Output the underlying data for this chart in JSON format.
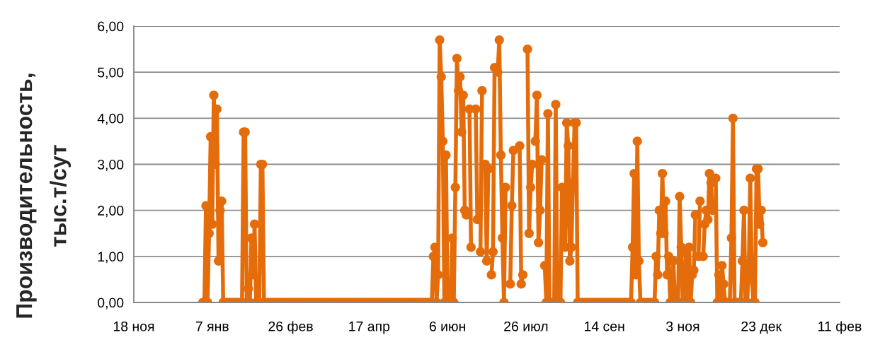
{
  "chart_data": {
    "type": "line",
    "ylabel": "Производительность,\nтыс.т/сут",
    "categories": [
      "18 ноя",
      null,
      null,
      null,
      null,
      null,
      null,
      null,
      null,
      null,
      null,
      null,
      null,
      null,
      null,
      null,
      null,
      null,
      null,
      null,
      null,
      null,
      null,
      null,
      null,
      null,
      null,
      null,
      null,
      null,
      null,
      null,
      null,
      null,
      null,
      null,
      null,
      null,
      null,
      null,
      null,
      null,
      null,
      null,
      null,
      null,
      null,
      null,
      null,
      null,
      "7 янв",
      null,
      null,
      null,
      null,
      null,
      null,
      null,
      null,
      null,
      null,
      null,
      null,
      null,
      null,
      null,
      null,
      null,
      null,
      null,
      null,
      null,
      null,
      null,
      null,
      null,
      null,
      null,
      null,
      null,
      null,
      null,
      null,
      null,
      null,
      null,
      null,
      null,
      null,
      null,
      null,
      null,
      null,
      null,
      null,
      null,
      null,
      null,
      null,
      null,
      "26 фев",
      null,
      null,
      null,
      null,
      null,
      null,
      null,
      null,
      null,
      null,
      null,
      null,
      null,
      null,
      null,
      null,
      null,
      null,
      null,
      null,
      null,
      null,
      null,
      null,
      null,
      null,
      null,
      null,
      null,
      null,
      null,
      null,
      null,
      null,
      null,
      null,
      null,
      null,
      null,
      null,
      null,
      null,
      null,
      null,
      null,
      null,
      null,
      null,
      null,
      "17 апр",
      null,
      null,
      null,
      null,
      null,
      null,
      null,
      null,
      null,
      null,
      null,
      null,
      null,
      null,
      null,
      null,
      null,
      null,
      null,
      null,
      null,
      null,
      null,
      null,
      null,
      null,
      null,
      null,
      null,
      null,
      null,
      null,
      null,
      null,
      null,
      null,
      null,
      null,
      null,
      null,
      null,
      null,
      null,
      null,
      null,
      null,
      null,
      null,
      null,
      "6 июн",
      null,
      null,
      null,
      null,
      null,
      null,
      null,
      null,
      null,
      null,
      null,
      null,
      null,
      null,
      null,
      null,
      null,
      null,
      null,
      null,
      null,
      null,
      null,
      null,
      null,
      null,
      null,
      null,
      null,
      null,
      null,
      null,
      null,
      null,
      null,
      null,
      null,
      null,
      null,
      null,
      null,
      null,
      null,
      null,
      null,
      null,
      null,
      null,
      null,
      "26 июл",
      null,
      null,
      null,
      null,
      null,
      null,
      null,
      null,
      null,
      null,
      null,
      null,
      null,
      null,
      null,
      null,
      null,
      null,
      null,
      null,
      null,
      null,
      null,
      null,
      null,
      null,
      null,
      null,
      null,
      null,
      null,
      null,
      null,
      null,
      null,
      null,
      null,
      null,
      null,
      null,
      null,
      null,
      null,
      null,
      null,
      null,
      null,
      null,
      null,
      "14 сен",
      null,
      null,
      null,
      null,
      null,
      null,
      null,
      null,
      null,
      null,
      null,
      null,
      null,
      null,
      null,
      null,
      null,
      null,
      null,
      null,
      null,
      null,
      null,
      null,
      null,
      null,
      null,
      null,
      null,
      null,
      null,
      null,
      null,
      null,
      null,
      null,
      null,
      null,
      null,
      null,
      null,
      null,
      null,
      null,
      null,
      null,
      null,
      null,
      null,
      "3 ноя",
      null,
      null,
      null,
      null,
      null,
      null,
      null,
      null,
      null,
      null,
      null,
      null,
      null,
      null,
      null,
      null,
      null,
      null,
      null,
      null,
      null,
      null,
      null,
      null,
      null,
      null,
      null,
      null,
      null,
      null,
      null,
      null,
      null,
      null,
      null,
      null,
      null,
      null,
      null,
      null,
      null,
      null,
      null,
      null,
      null,
      null,
      null,
      null,
      null,
      "23 дек",
      null,
      null,
      null,
      null,
      null,
      null,
      null,
      null,
      null,
      null,
      null,
      null,
      null,
      null,
      null,
      null,
      null,
      null,
      null,
      null,
      null,
      null,
      null,
      null,
      null,
      null,
      null,
      null,
      null,
      null,
      null,
      null,
      null,
      null,
      null,
      null,
      null,
      null,
      null,
      null,
      null,
      null,
      null,
      null,
      null,
      null,
      null,
      null,
      null,
      "11 фев"
    ],
    "values": [
      null,
      null,
      null,
      null,
      null,
      null,
      null,
      null,
      null,
      null,
      null,
      null,
      null,
      null,
      null,
      null,
      null,
      null,
      null,
      null,
      null,
      null,
      null,
      null,
      null,
      null,
      null,
      null,
      null,
      null,
      null,
      null,
      null,
      null,
      null,
      null,
      null,
      null,
      null,
      null,
      null,
      null,
      null,
      null,
      0,
      0,
      2.1,
      0,
      1.5,
      3.6,
      1.7,
      4.5,
      3.0,
      4.2,
      0.9,
      2.0,
      2.2,
      0,
      0,
      0,
      0,
      0,
      0,
      0,
      0,
      0,
      0,
      0,
      0,
      0,
      3.7,
      3.7,
      0,
      0.3,
      0,
      1.4,
      0.6,
      1.7,
      0,
      0,
      0,
      3.0,
      3.0,
      0,
      0,
      0,
      0,
      0,
      0,
      0,
      0,
      0,
      0,
      0,
      0,
      0,
      0,
      0,
      0,
      0,
      0,
      0,
      0,
      0,
      0,
      0,
      0,
      0,
      0,
      0,
      0,
      0,
      0,
      0,
      0,
      0,
      0,
      0,
      0,
      0,
      0,
      0,
      0,
      0,
      0,
      0,
      0,
      0,
      0,
      0,
      0,
      0,
      0,
      0,
      0,
      0,
      0,
      0,
      0,
      0,
      0,
      0,
      0,
      0,
      0,
      0,
      0,
      0,
      0,
      0,
      0,
      0,
      0,
      0,
      0,
      0,
      0,
      0,
      0,
      0,
      0,
      0,
      0,
      0,
      0,
      0,
      0,
      0,
      0,
      0,
      0,
      0,
      0,
      0,
      0,
      0,
      0,
      0,
      0,
      0,
      0,
      0,
      0,
      0,
      0,
      0,
      0,
      0,
      0,
      0,
      0,
      1.0,
      1.2,
      0,
      0.6,
      5.7,
      4.9,
      3.5,
      0,
      3.2,
      0,
      0,
      0,
      1.4,
      0,
      2.5,
      5.3,
      4.6,
      4.9,
      3.7,
      4.5,
      2.0,
      1.9,
      null,
      4.2,
      1.2,
      null,
      null,
      4.2,
      1.8,
      null,
      1.1,
      4.6,
      null,
      3.0,
      0.9,
      2.9,
      null,
      0.6,
      1.1,
      5.1,
      null,
      5.0,
      5.7,
      3.2,
      1.4,
      0,
      2.5,
      null,
      null,
      0.4,
      2.1,
      3.3,
      null,
      null,
      null,
      3.4,
      0.4,
      0.6,
      null,
      null,
      5.5,
      1.5,
      2.5,
      3.0,
      null,
      3.5,
      4.5,
      1.3,
      2.0,
      3.1,
      null,
      0.8,
      0,
      4.1,
      0,
      0,
      0,
      0,
      4.3,
      0,
      0,
      0,
      2.5,
      null,
      1.2,
      3.9,
      3.4,
      0.9,
      1.2,
      2.6,
      3.9,
      3.9,
      0,
      0,
      0,
      0,
      0,
      0,
      0,
      0,
      0,
      0,
      0,
      0,
      0,
      0,
      0,
      0,
      0,
      0,
      0,
      0,
      0,
      0,
      0,
      0,
      0,
      0,
      0,
      0,
      0,
      0,
      0,
      0,
      0,
      0,
      0,
      1.2,
      2.8,
      0.6,
      3.5,
      0.9,
      0,
      0,
      0,
      0,
      0,
      0,
      0,
      0,
      0,
      0,
      1.0,
      0.6,
      2.0,
      1.5,
      2.8,
      1.5,
      2.2,
      0.6,
      1.0,
      0,
      0,
      0.9,
      0,
      0,
      0,
      2.3,
      1.2,
      0,
      0,
      1.1,
      0,
      1.2,
      0,
      0.6,
      0.7,
      1.9,
      null,
      1.0,
      2.2,
      null,
      1.0,
      1.7,
      2.0,
      1.8,
      2.8,
      2.6,
      2.0,
      null,
      2.7,
      0,
      0.6,
      0,
      0.8,
      0.4,
      0,
      0,
      0,
      0,
      1.4,
      4.0,
      0,
      0,
      0,
      0,
      0,
      0.9,
      2.0,
      0,
      0,
      0.6,
      2.7,
      0.6,
      0,
      0,
      2.9,
      2.9,
      1.7,
      2.0,
      1.3,
      null,
      null,
      null,
      null,
      null,
      null,
      null,
      null,
      null,
      null,
      null,
      null,
      null,
      null,
      null,
      null,
      null,
      null,
      null,
      null,
      null,
      null,
      null,
      null,
      null,
      null,
      null,
      null,
      null,
      null,
      null,
      null,
      null,
      null,
      null,
      null,
      null,
      null,
      null,
      null,
      null,
      null,
      null,
      null,
      null,
      null,
      null,
      null,
      null
    ],
    "color": "#e46c0a",
    "ylim": [
      0,
      6
    ],
    "yticks": [
      {
        "value": 0,
        "label": "0,00"
      },
      {
        "value": 1,
        "label": "1,00"
      },
      {
        "value": 2,
        "label": "2,00"
      },
      {
        "value": 3,
        "label": "3,00"
      },
      {
        "value": 4,
        "label": "4,00"
      },
      {
        "value": 5,
        "label": "5,00"
      },
      {
        "value": 6,
        "label": "6,00"
      }
    ],
    "grid": "y",
    "marker": "circle",
    "line_style": "solid"
  }
}
